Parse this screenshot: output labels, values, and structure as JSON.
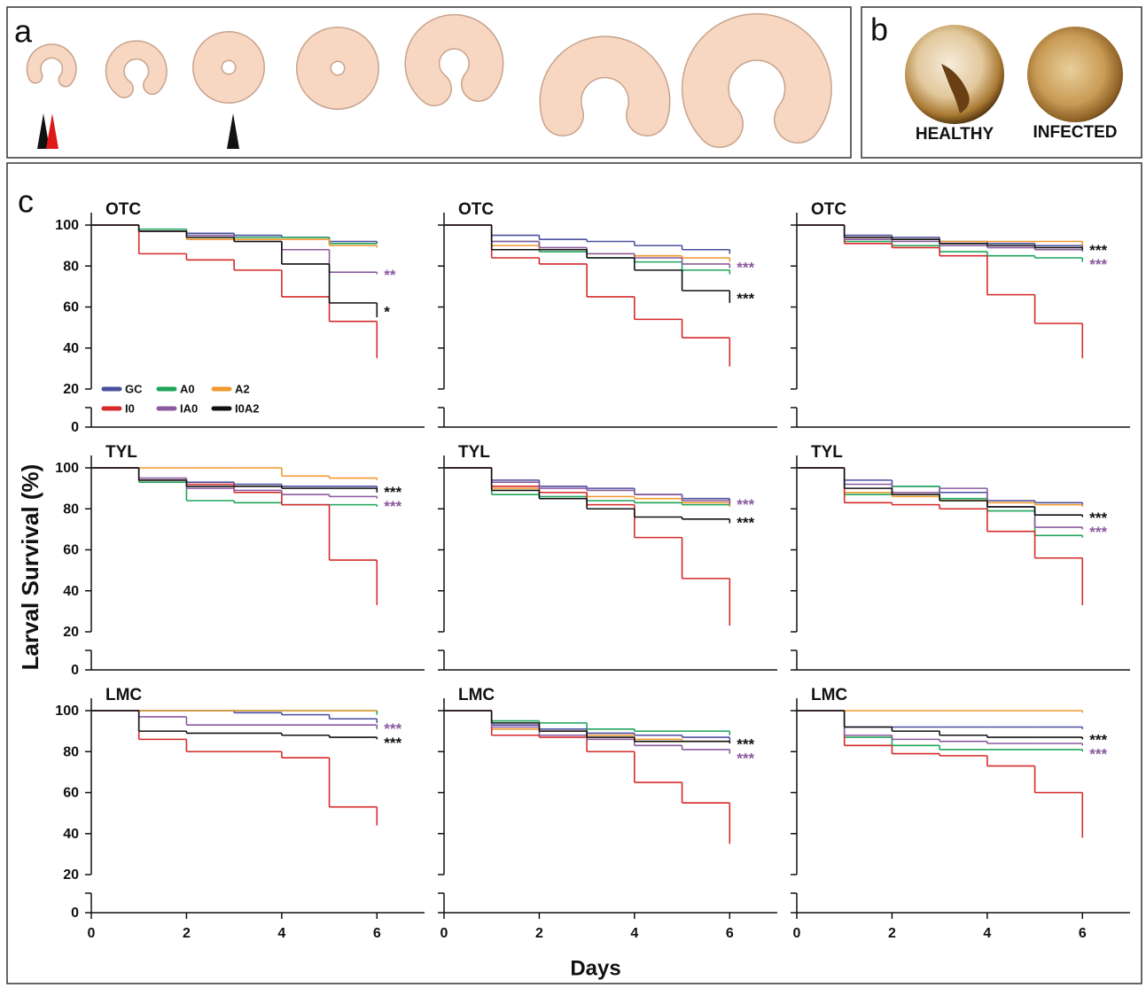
{
  "panel_a": {
    "label": "a"
  },
  "panel_b": {
    "label": "b",
    "captions": [
      "HEALTHY",
      "INFECTED"
    ]
  },
  "panel_c": {
    "label": "c",
    "ylabel": "Larval Survival (%)",
    "xlabel": "Days"
  },
  "chart_data": [
    {
      "type": "step",
      "title": "OTC",
      "x": [
        0,
        1,
        2,
        3,
        4,
        5,
        6
      ],
      "xlim": [
        0,
        7
      ],
      "ylim": [
        0,
        100
      ],
      "yticks": [
        0,
        20,
        40,
        60,
        80,
        100
      ],
      "y_break": true,
      "show_ytick_labels": true,
      "legend": "lower-left",
      "series": [
        {
          "name": "GC",
          "color": "#4b4f9e",
          "values": [
            100,
            97,
            96,
            95,
            94,
            92,
            91
          ]
        },
        {
          "name": "A0",
          "color": "#1ea55a",
          "values": [
            100,
            98,
            95,
            94,
            94,
            91,
            91
          ]
        },
        {
          "name": "A2",
          "color": "#f0992e",
          "values": [
            100,
            97,
            93,
            93,
            93,
            90,
            89
          ]
        },
        {
          "name": "I0",
          "color": "#d62a2a",
          "values": [
            100,
            86,
            83,
            78,
            65,
            53,
            35
          ]
        },
        {
          "name": "IA0",
          "color": "#8b5a9e",
          "values": [
            100,
            97,
            95,
            92,
            88,
            77,
            76
          ]
        },
        {
          "name": "I0A2",
          "color": "#111111",
          "values": [
            100,
            97,
            94,
            92,
            81,
            62,
            55
          ]
        }
      ],
      "annotations": [
        {
          "text": "**",
          "color": "#8b5a9e"
        },
        {
          "text": "*",
          "color": "#111111"
        }
      ]
    },
    {
      "type": "step",
      "title": "OTC",
      "x": [
        0,
        1,
        2,
        3,
        4,
        5,
        6
      ],
      "xlim": [
        0,
        7
      ],
      "ylim": [
        0,
        100
      ],
      "yticks": [
        0,
        20,
        40,
        60,
        80,
        100
      ],
      "y_break": true,
      "show_ytick_labels": false,
      "series": [
        {
          "color": "#4b4f9e",
          "values": [
            100,
            95,
            93,
            92,
            90,
            88,
            86
          ]
        },
        {
          "color": "#1ea55a",
          "values": [
            100,
            92,
            87,
            84,
            82,
            78,
            76
          ]
        },
        {
          "color": "#f0992e",
          "values": [
            100,
            90,
            88,
            86,
            85,
            84,
            82
          ]
        },
        {
          "color": "#d62a2a",
          "values": [
            100,
            84,
            81,
            65,
            54,
            45,
            31
          ]
        },
        {
          "color": "#8b5a9e",
          "values": [
            100,
            92,
            89,
            86,
            84,
            81,
            79
          ]
        },
        {
          "color": "#111111",
          "values": [
            100,
            88,
            88,
            84,
            78,
            68,
            62
          ]
        }
      ],
      "annotations": [
        {
          "text": "***",
          "color": "#8b5a9e"
        },
        {
          "text": "***",
          "color": "#111111"
        }
      ]
    },
    {
      "type": "step",
      "title": "OTC",
      "x": [
        0,
        1,
        2,
        3,
        4,
        5,
        6
      ],
      "xlim": [
        0,
        7
      ],
      "ylim": [
        0,
        100
      ],
      "yticks": [
        0,
        20,
        40,
        60,
        80,
        100
      ],
      "y_break": true,
      "show_ytick_labels": false,
      "series": [
        {
          "color": "#4b4f9e",
          "values": [
            100,
            95,
            94,
            92,
            91,
            90,
            89
          ]
        },
        {
          "color": "#1ea55a",
          "values": [
            100,
            92,
            90,
            87,
            85,
            84,
            82
          ]
        },
        {
          "color": "#f0992e",
          "values": [
            100,
            94,
            93,
            92,
            92,
            92,
            90
          ]
        },
        {
          "color": "#d62a2a",
          "values": [
            100,
            91,
            89,
            85,
            66,
            52,
            35
          ]
        },
        {
          "color": "#8b5a9e",
          "values": [
            100,
            93,
            92,
            90,
            89,
            88,
            87
          ]
        },
        {
          "color": "#111111",
          "values": [
            100,
            94,
            93,
            91,
            90,
            89,
            88
          ]
        }
      ],
      "annotations": [
        {
          "text": "***",
          "color": "#8b5a9e"
        },
        {
          "text": "***",
          "color": "#111111"
        }
      ]
    },
    {
      "type": "step",
      "title": "TYL",
      "x": [
        0,
        1,
        2,
        3,
        4,
        5,
        6
      ],
      "xlim": [
        0,
        7
      ],
      "ylim": [
        0,
        100
      ],
      "yticks": [
        0,
        20,
        40,
        60,
        80,
        100
      ],
      "y_break": true,
      "show_ytick_labels": true,
      "series": [
        {
          "color": "#4b4f9e",
          "values": [
            100,
            94,
            93,
            92,
            91,
            91,
            89
          ]
        },
        {
          "color": "#1ea55a",
          "values": [
            100,
            93,
            84,
            83,
            82,
            82,
            81
          ]
        },
        {
          "color": "#f0992e",
          "values": [
            100,
            100,
            100,
            100,
            96,
            95,
            94
          ]
        },
        {
          "color": "#d62a2a",
          "values": [
            100,
            94,
            92,
            88,
            82,
            55,
            33
          ]
        },
        {
          "color": "#8b5a9e",
          "values": [
            100,
            95,
            90,
            89,
            87,
            86,
            85
          ]
        },
        {
          "color": "#111111",
          "values": [
            100,
            94,
            91,
            91,
            90,
            90,
            88
          ]
        }
      ],
      "annotations": [
        {
          "text": "***",
          "color": "#111111"
        },
        {
          "text": "***",
          "color": "#8b5a9e"
        }
      ]
    },
    {
      "type": "step",
      "title": "TYL",
      "x": [
        0,
        1,
        2,
        3,
        4,
        5,
        6
      ],
      "xlim": [
        0,
        7
      ],
      "ylim": [
        0,
        100
      ],
      "yticks": [
        0,
        20,
        40,
        60,
        80,
        100
      ],
      "y_break": true,
      "show_ytick_labels": false,
      "series": [
        {
          "color": "#4b4f9e",
          "values": [
            100,
            94,
            91,
            90,
            87,
            85,
            83
          ]
        },
        {
          "color": "#1ea55a",
          "values": [
            100,
            87,
            86,
            84,
            83,
            82,
            81
          ]
        },
        {
          "color": "#f0992e",
          "values": [
            100,
            90,
            88,
            86,
            85,
            83,
            81
          ]
        },
        {
          "color": "#d62a2a",
          "values": [
            100,
            91,
            88,
            82,
            66,
            46,
            23
          ]
        },
        {
          "color": "#8b5a9e",
          "values": [
            100,
            93,
            90,
            89,
            87,
            84,
            82
          ]
        },
        {
          "color": "#111111",
          "values": [
            100,
            89,
            85,
            80,
            76,
            75,
            73
          ]
        }
      ],
      "annotations": [
        {
          "text": "***",
          "color": "#8b5a9e"
        },
        {
          "text": "***",
          "color": "#111111"
        }
      ]
    },
    {
      "type": "step",
      "title": "TYL",
      "x": [
        0,
        1,
        2,
        3,
        4,
        5,
        6
      ],
      "xlim": [
        0,
        7
      ],
      "ylim": [
        0,
        100
      ],
      "yticks": [
        0,
        20,
        40,
        60,
        80,
        100
      ],
      "y_break": true,
      "show_ytick_labels": false,
      "series": [
        {
          "color": "#4b4f9e",
          "values": [
            100,
            94,
            91,
            88,
            84,
            83,
            82
          ]
        },
        {
          "color": "#1ea55a",
          "values": [
            100,
            87,
            91,
            85,
            79,
            67,
            66
          ]
        },
        {
          "color": "#f0992e",
          "values": [
            100,
            88,
            86,
            84,
            83,
            82,
            81
          ]
        },
        {
          "color": "#d62a2a",
          "values": [
            100,
            83,
            82,
            80,
            69,
            56,
            33
          ]
        },
        {
          "color": "#8b5a9e",
          "values": [
            100,
            92,
            88,
            90,
            81,
            71,
            70
          ]
        },
        {
          "color": "#111111",
          "values": [
            100,
            90,
            87,
            84,
            81,
            77,
            76
          ]
        }
      ],
      "annotations": [
        {
          "text": "***",
          "color": "#111111"
        },
        {
          "text": "***",
          "color": "#8b5a9e"
        }
      ]
    },
    {
      "type": "step",
      "title": "LMC",
      "x": [
        0,
        1,
        2,
        3,
        4,
        5,
        6
      ],
      "xlim": [
        0,
        7
      ],
      "xticks": [
        0,
        2,
        4,
        6
      ],
      "ylim": [
        0,
        100
      ],
      "yticks": [
        0,
        20,
        40,
        60,
        80,
        100
      ],
      "y_break": true,
      "show_ytick_labels": true,
      "series": [
        {
          "color": "#4b4f9e",
          "values": [
            100,
            100,
            100,
            99,
            98,
            96,
            94
          ]
        },
        {
          "color": "#1ea55a",
          "values": [
            100,
            100,
            100,
            100,
            100,
            100,
            98
          ]
        },
        {
          "color": "#f0992e",
          "values": [
            100,
            100,
            100,
            100,
            100,
            100,
            100
          ]
        },
        {
          "color": "#d62a2a",
          "values": [
            100,
            86,
            80,
            80,
            77,
            53,
            44
          ]
        },
        {
          "color": "#8b5a9e",
          "values": [
            100,
            97,
            93,
            93,
            93,
            93,
            91
          ]
        },
        {
          "color": "#111111",
          "values": [
            100,
            90,
            89,
            89,
            88,
            87,
            86
          ]
        }
      ],
      "annotations": [
        {
          "text": "***",
          "color": "#8b5a9e"
        },
        {
          "text": "***",
          "color": "#111111"
        }
      ]
    },
    {
      "type": "step",
      "title": "LMC",
      "x": [
        0,
        1,
        2,
        3,
        4,
        5,
        6
      ],
      "xlim": [
        0,
        7
      ],
      "xticks": [
        0,
        2,
        4,
        6
      ],
      "ylim": [
        0,
        100
      ],
      "yticks": [
        0,
        20,
        40,
        60,
        80,
        100
      ],
      "y_break": true,
      "show_ytick_labels": false,
      "series": [
        {
          "color": "#4b4f9e",
          "values": [
            100,
            93,
            91,
            89,
            88,
            87,
            85
          ]
        },
        {
          "color": "#1ea55a",
          "values": [
            100,
            95,
            94,
            91,
            90,
            90,
            88
          ]
        },
        {
          "color": "#f0992e",
          "values": [
            100,
            91,
            90,
            88,
            86,
            85,
            84
          ]
        },
        {
          "color": "#d62a2a",
          "values": [
            100,
            88,
            87,
            80,
            65,
            55,
            35
          ]
        },
        {
          "color": "#8b5a9e",
          "values": [
            100,
            92,
            88,
            86,
            83,
            81,
            79
          ]
        },
        {
          "color": "#111111",
          "values": [
            100,
            94,
            90,
            87,
            85,
            85,
            84
          ]
        }
      ],
      "annotations": [
        {
          "text": "***",
          "color": "#111111"
        },
        {
          "text": "***",
          "color": "#8b5a9e"
        }
      ]
    },
    {
      "type": "step",
      "title": "LMC",
      "x": [
        0,
        1,
        2,
        3,
        4,
        5,
        6
      ],
      "xlim": [
        0,
        7
      ],
      "xticks": [
        0,
        2,
        4,
        6
      ],
      "ylim": [
        0,
        100
      ],
      "yticks": [
        0,
        20,
        40,
        60,
        80,
        100
      ],
      "y_break": true,
      "show_ytick_labels": false,
      "series": [
        {
          "color": "#4b4f9e",
          "values": [
            100,
            92,
            92,
            92,
            92,
            92,
            91
          ]
        },
        {
          "color": "#1ea55a",
          "values": [
            100,
            87,
            83,
            81,
            81,
            81,
            80
          ]
        },
        {
          "color": "#f0992e",
          "values": [
            100,
            100,
            100,
            100,
            100,
            100,
            99
          ]
        },
        {
          "color": "#d62a2a",
          "values": [
            100,
            83,
            79,
            78,
            73,
            60,
            38
          ]
        },
        {
          "color": "#8b5a9e",
          "values": [
            100,
            88,
            86,
            85,
            84,
            84,
            83
          ]
        },
        {
          "color": "#111111",
          "values": [
            100,
            92,
            90,
            88,
            87,
            87,
            86
          ]
        }
      ],
      "annotations": [
        {
          "text": "***",
          "color": "#111111"
        },
        {
          "text": "***",
          "color": "#8b5a9e"
        }
      ]
    }
  ]
}
